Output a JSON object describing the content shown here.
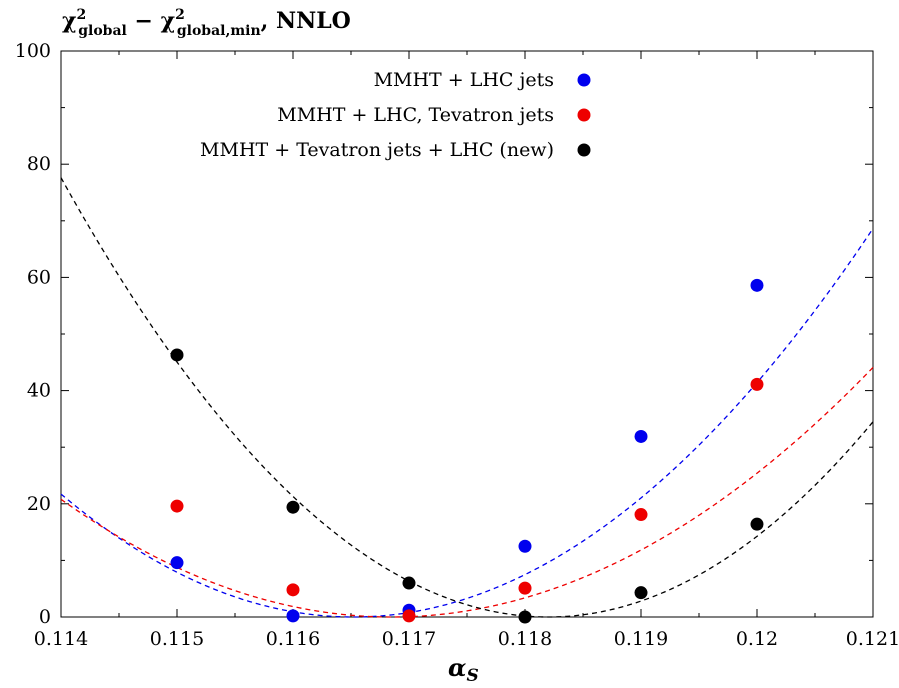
{
  "chart_data": {
    "type": "scatter",
    "title": "χ²global − χ²global,min, NNLO",
    "title_parts": {
      "chi": "χ",
      "sup": "2",
      "sub1": "global",
      "minus": " − ",
      "sub2": "global,min",
      "suffix": ", NNLO"
    },
    "xlabel": "α",
    "xlabel_sub": "S",
    "ylabel": "",
    "xlim": [
      0.114,
      0.121
    ],
    "ylim": [
      0,
      100
    ],
    "x_ticks": [
      "0.114",
      "0.115",
      "0.116",
      "0.117",
      "0.118",
      "0.119",
      "0.12",
      "0.121"
    ],
    "y_ticks": [
      "0",
      "20",
      "40",
      "60",
      "80",
      "100"
    ],
    "grid": false,
    "legend_position": "top-right",
    "series": [
      {
        "name": "MMHT + LHC jets",
        "color": "#0000ee",
        "x": [
          0.115,
          0.116,
          0.117,
          0.118,
          0.119,
          0.12
        ],
        "y": [
          9.6,
          0.2,
          1.2,
          12.5,
          31.9,
          58.6
        ],
        "fit": {
          "a": 3420000.0,
          "x0": 0.11652,
          "c": 0
        }
      },
      {
        "name": "MMHT + LHC, Tevatron jets",
        "color": "#ee0000",
        "x": [
          0.115,
          0.116,
          0.117,
          0.118,
          0.119,
          0.12
        ],
        "y": [
          19.6,
          4.8,
          0.2,
          5.1,
          18.1,
          41.1
        ],
        "fit": {
          "a": 2560000.0,
          "x0": 0.11685,
          "c": 0
        }
      },
      {
        "name": "MMHT + Tevatron jets + LHC (new)",
        "color": "#000000",
        "x": [
          0.115,
          0.116,
          0.117,
          0.118,
          0.119,
          0.12
        ],
        "y": [
          46.3,
          19.4,
          6.0,
          0.0,
          4.3,
          16.4
        ],
        "fit": {
          "a": 4400000.0,
          "x0": 0.1182,
          "c": 0
        }
      }
    ]
  }
}
